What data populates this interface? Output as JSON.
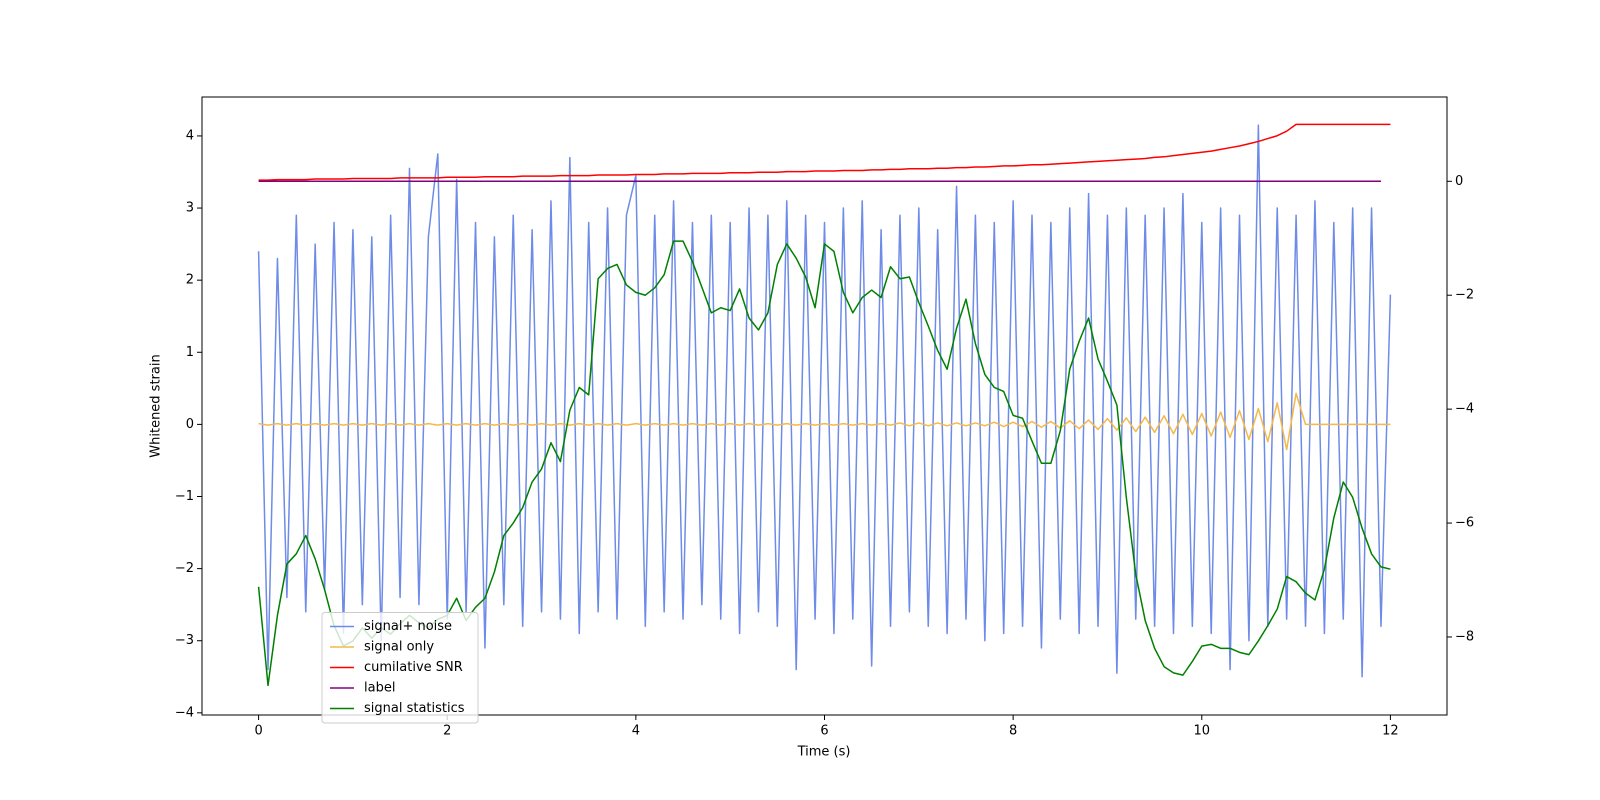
{
  "chart_data": {
    "type": "line",
    "xlabel": "Time (s)",
    "ylabel": "Whitened strain",
    "x": [
      0,
      0.1,
      0.2,
      0.3,
      0.4,
      0.5,
      0.6,
      0.7,
      0.8,
      0.9,
      1,
      1.1,
      1.2,
      1.3,
      1.4,
      1.5,
      1.6,
      1.7,
      1.8,
      1.9,
      2,
      2.1,
      2.2,
      2.3,
      2.4,
      2.5,
      2.6,
      2.7,
      2.8,
      2.9,
      3,
      3.1,
      3.2,
      3.3,
      3.4,
      3.5,
      3.6,
      3.7,
      3.8,
      3.9,
      4,
      4.1,
      4.2,
      4.3,
      4.4,
      4.5,
      4.6,
      4.7,
      4.8,
      4.9,
      5,
      5.1,
      5.2,
      5.3,
      5.4,
      5.5,
      5.6,
      5.7,
      5.8,
      5.9,
      6,
      6.1,
      6.2,
      6.3,
      6.4,
      6.5,
      6.6,
      6.7,
      6.8,
      6.9,
      7,
      7.1,
      7.2,
      7.3,
      7.4,
      7.5,
      7.6,
      7.7,
      7.8,
      7.9,
      8,
      8.1,
      8.2,
      8.3,
      8.4,
      8.5,
      8.6,
      8.7,
      8.8,
      8.9,
      9,
      9.1,
      9.2,
      9.3,
      9.4,
      9.5,
      9.6,
      9.7,
      9.8,
      9.9,
      10,
      10.1,
      10.2,
      10.3,
      10.4,
      10.5,
      10.6,
      10.7,
      10.8,
      10.9,
      11,
      11.1,
      11.2,
      11.3,
      11.4,
      11.5,
      11.6,
      11.7,
      11.8,
      11.9,
      12
    ],
    "series": [
      {
        "name": "signal+ noise",
        "color": "#6e8be8",
        "axis": "y",
        "values": [
          2.4,
          -3.4,
          2.3,
          -2.4,
          2.9,
          -2.6,
          2.5,
          -2.3,
          2.8,
          -2.9,
          2.7,
          -2.5,
          2.6,
          -3.0,
          2.9,
          -2.4,
          3.55,
          -2.5,
          2.6,
          3.75,
          -2.7,
          3.4,
          -2.6,
          2.8,
          -3.1,
          2.6,
          -2.5,
          2.9,
          -2.8,
          2.7,
          -2.6,
          3.1,
          -2.7,
          3.7,
          -2.9,
          2.8,
          -2.6,
          3.0,
          -2.7,
          2.9,
          3.45,
          -2.8,
          2.9,
          -2.6,
          3.1,
          -2.7,
          2.8,
          -2.5,
          2.9,
          -2.7,
          2.8,
          -2.9,
          3.0,
          -2.6,
          2.9,
          -2.8,
          3.1,
          -3.4,
          2.9,
          -2.7,
          2.8,
          -2.9,
          3.0,
          -2.7,
          3.1,
          -3.35,
          2.7,
          -2.8,
          2.9,
          -2.6,
          3.0,
          -2.8,
          2.7,
          -2.9,
          3.3,
          -2.7,
          2.9,
          -3.0,
          2.8,
          -2.9,
          3.1,
          -2.8,
          2.9,
          -3.1,
          2.8,
          -2.7,
          3.0,
          -2.9,
          3.2,
          -2.8,
          2.9,
          -3.45,
          3.0,
          -2.7,
          2.9,
          -2.8,
          3.0,
          -2.9,
          3.2,
          -2.8,
          2.8,
          -2.9,
          3.0,
          -3.4,
          2.9,
          -3.0,
          4.15,
          -2.8,
          3.0,
          -2.7,
          2.9,
          -2.8,
          3.1,
          -2.9,
          2.8,
          -2.7,
          3.0,
          -3.5,
          3.0,
          -2.8,
          1.8
        ]
      },
      {
        "name": "signal only",
        "color": "#f5b84a",
        "axis": "y",
        "values": [
          0.01,
          -0.01,
          0.01,
          -0.01,
          0.01,
          -0.01,
          0.01,
          -0.01,
          0.01,
          -0.01,
          0.01,
          -0.01,
          0.01,
          -0.01,
          0.01,
          -0.01,
          0.01,
          -0.01,
          0.01,
          -0.01,
          0.01,
          -0.01,
          0.01,
          -0.01,
          0.01,
          -0.01,
          0.01,
          -0.01,
          0.01,
          -0.01,
          0.01,
          -0.01,
          0.01,
          -0.01,
          0.01,
          -0.01,
          0.01,
          -0.01,
          0.01,
          -0.01,
          0.01,
          -0.01,
          0.01,
          -0.01,
          0.01,
          -0.01,
          0.01,
          -0.01,
          0.01,
          -0.01,
          0.01,
          -0.01,
          0.01,
          -0.01,
          0.01,
          -0.01,
          0.01,
          -0.01,
          0.01,
          -0.01,
          0.01,
          -0.01,
          0.01,
          -0.01,
          0.01,
          -0.01,
          0.01,
          -0.01,
          0.02,
          -0.02,
          0.02,
          -0.02,
          0.02,
          -0.02,
          0.02,
          -0.02,
          0.02,
          -0.02,
          0.03,
          -0.03,
          0.03,
          -0.03,
          0.04,
          -0.04,
          0.04,
          -0.05,
          0.05,
          -0.06,
          0.06,
          -0.07,
          0.08,
          -0.08,
          0.09,
          -0.1,
          0.1,
          -0.11,
          0.12,
          -0.13,
          0.14,
          -0.14,
          0.15,
          -0.16,
          0.17,
          -0.18,
          0.19,
          -0.21,
          0.22,
          -0.24,
          0.3,
          -0.35,
          0.43,
          0,
          0,
          0,
          0,
          0,
          0,
          0,
          0,
          0,
          0
        ]
      },
      {
        "name": "cumilative SNR",
        "color": "#ff0000",
        "axis": "y2",
        "values": [
          0.02,
          0.02,
          0.03,
          0.03,
          0.03,
          0.03,
          0.04,
          0.04,
          0.04,
          0.04,
          0.05,
          0.05,
          0.05,
          0.05,
          0.05,
          0.06,
          0.06,
          0.06,
          0.06,
          0.06,
          0.07,
          0.07,
          0.07,
          0.07,
          0.08,
          0.08,
          0.08,
          0.08,
          0.09,
          0.09,
          0.09,
          0.09,
          0.1,
          0.1,
          0.1,
          0.1,
          0.11,
          0.11,
          0.11,
          0.11,
          0.12,
          0.12,
          0.12,
          0.13,
          0.13,
          0.13,
          0.14,
          0.14,
          0.14,
          0.14,
          0.15,
          0.15,
          0.15,
          0.16,
          0.16,
          0.16,
          0.17,
          0.17,
          0.17,
          0.18,
          0.18,
          0.18,
          0.19,
          0.19,
          0.19,
          0.2,
          0.2,
          0.21,
          0.21,
          0.22,
          0.22,
          0.22,
          0.23,
          0.23,
          0.24,
          0.24,
          0.25,
          0.25,
          0.26,
          0.27,
          0.27,
          0.28,
          0.29,
          0.29,
          0.3,
          0.31,
          0.32,
          0.33,
          0.34,
          0.35,
          0.36,
          0.37,
          0.38,
          0.39,
          0.4,
          0.42,
          0.43,
          0.45,
          0.47,
          0.49,
          0.51,
          0.53,
          0.56,
          0.59,
          0.62,
          0.66,
          0.7,
          0.75,
          0.8,
          0.88,
          1,
          1,
          1,
          1,
          1,
          1,
          1,
          1,
          1,
          1,
          1
        ]
      },
      {
        "name": "label",
        "color": "#800080",
        "axis": "y2",
        "values": [
          0,
          0,
          0,
          0,
          0,
          0,
          0,
          0,
          0,
          0,
          0,
          0,
          0,
          0,
          0,
          0,
          0,
          0,
          0,
          0,
          0,
          0,
          0,
          0,
          0,
          0,
          0,
          0,
          0,
          0,
          0,
          0,
          0,
          0,
          0,
          0,
          0,
          0,
          0,
          0,
          0,
          0,
          0,
          0,
          0,
          0,
          0,
          0,
          0,
          0,
          0,
          0,
          0,
          0,
          0,
          0,
          0,
          0,
          0,
          0,
          0,
          0,
          0,
          0,
          0,
          0,
          0,
          0,
          0,
          0,
          0,
          0,
          0,
          0,
          0,
          0,
          0,
          0,
          0,
          0,
          0,
          0,
          0,
          0,
          0,
          0,
          0,
          0,
          0,
          0,
          0,
          0,
          0,
          0,
          0,
          0,
          0,
          0,
          0,
          0,
          0,
          0,
          0,
          0,
          0,
          0,
          0,
          0,
          0,
          0,
          0,
          0,
          0,
          0,
          0,
          0,
          0,
          0,
          0,
          0,
          null
        ]
      },
      {
        "name": "signal statistics",
        "color": "#008000",
        "axis": "y2",
        "values": [
          -7.12,
          -8.85,
          -7.62,
          -6.72,
          -6.54,
          -6.22,
          -6.63,
          -7.17,
          -7.8,
          -8.16,
          -8.07,
          -7.84,
          -8.02,
          -7.84,
          -7.95,
          -7.77,
          -7.62,
          -7.75,
          -7.84,
          -7.69,
          -7.62,
          -7.32,
          -7.71,
          -7.48,
          -7.32,
          -6.86,
          -6.22,
          -6.0,
          -5.73,
          -5.28,
          -5.05,
          -4.59,
          -4.92,
          -4.02,
          -3.62,
          -3.75,
          -1.71,
          -1.53,
          -1.46,
          -1.82,
          -1.95,
          -2.0,
          -1.87,
          -1.64,
          -1.05,
          -1.05,
          -1.41,
          -1.86,
          -2.31,
          -2.22,
          -2.27,
          -1.89,
          -2.4,
          -2.61,
          -2.31,
          -1.46,
          -1.1,
          -1.35,
          -1.68,
          -2.22,
          -1.1,
          -1.23,
          -1.95,
          -2.31,
          -2.04,
          -1.91,
          -2.04,
          -1.5,
          -1.71,
          -1.68,
          -2.13,
          -2.54,
          -2.97,
          -3.3,
          -2.58,
          -2.07,
          -2.85,
          -3.39,
          -3.62,
          -3.69,
          -4.11,
          -4.16,
          -4.56,
          -4.95,
          -4.95,
          -4.38,
          -3.3,
          -2.81,
          -2.4,
          -3.12,
          -3.51,
          -3.93,
          -5.55,
          -6.9,
          -7.71,
          -8.2,
          -8.52,
          -8.63,
          -8.67,
          -8.43,
          -8.16,
          -8.13,
          -8.2,
          -8.2,
          -8.27,
          -8.31,
          -8.07,
          -7.8,
          -7.51,
          -6.94,
          -7.03,
          -7.23,
          -7.35,
          -6.81,
          -5.91,
          -5.28,
          -5.55,
          -6.09,
          -6.54,
          -6.77,
          -6.81
        ]
      }
    ],
    "xlim": [
      -0.6,
      12.6
    ],
    "ylim": [
      -4.03,
      4.54
    ],
    "y2lim": [
      -9.37,
      1.48
    ],
    "xticks": [
      0,
      2,
      4,
      6,
      8,
      10,
      12
    ],
    "yticks": [
      {
        "value": -4,
        "label": "−4"
      },
      {
        "value": -3,
        "label": "−3"
      },
      {
        "value": -2,
        "label": "−2"
      },
      {
        "value": -1,
        "label": "−1"
      },
      0,
      1,
      2,
      3,
      4
    ],
    "y2ticks": [
      {
        "value": -8,
        "label": "−8"
      },
      {
        "value": -6,
        "label": "−6"
      },
      {
        "value": -4,
        "label": "−4"
      },
      {
        "value": -2,
        "label": "−2"
      },
      0
    ],
    "legend": "lower left"
  }
}
